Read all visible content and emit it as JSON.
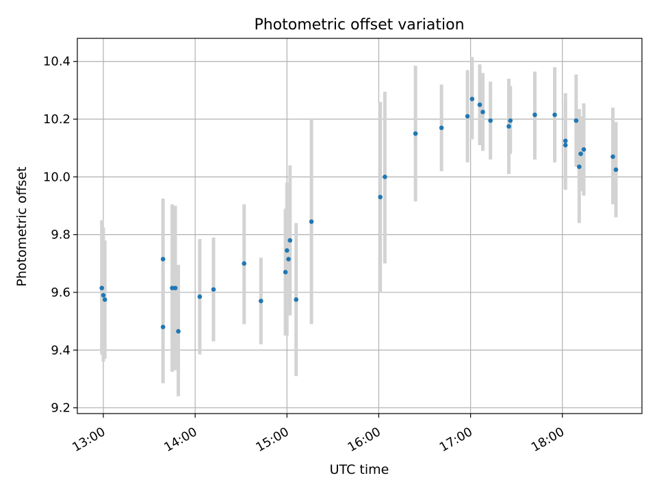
{
  "chart_data": {
    "type": "scatter",
    "title": "Photometric offset variation",
    "xlabel": "UTC time",
    "ylabel": "Photometric offset",
    "xlim": [
      "12:43",
      "18:52"
    ],
    "ylim": [
      9.18,
      10.48
    ],
    "xticks": [
      "13:00",
      "14:00",
      "15:00",
      "16:00",
      "17:00",
      "18:00"
    ],
    "yticks": [
      "9.2",
      "9.4",
      "9.6",
      "9.8",
      "10.0",
      "10.2",
      "10.4"
    ],
    "grid": true,
    "colors": {
      "point": "#1f77b4",
      "errorbar": "#d3d3d3",
      "grid": "#b0b0b0"
    },
    "points": [
      {
        "x": "12:59",
        "y": 9.615,
        "lo": 9.385,
        "hi": 9.85
      },
      {
        "x": "13:00",
        "y": 9.59,
        "lo": 9.36,
        "hi": 9.825
      },
      {
        "x": "13:01",
        "y": 9.575,
        "lo": 9.37,
        "hi": 9.78
      },
      {
        "x": "13:39",
        "y": 9.715,
        "lo": 9.505,
        "hi": 9.925
      },
      {
        "x": "13:39",
        "y": 9.48,
        "lo": 9.285,
        "hi": 9.685
      },
      {
        "x": "13:45",
        "y": 9.615,
        "lo": 9.325,
        "hi": 9.905
      },
      {
        "x": "13:47",
        "y": 9.615,
        "lo": 9.33,
        "hi": 9.9
      },
      {
        "x": "13:49",
        "y": 9.465,
        "lo": 9.24,
        "hi": 9.695
      },
      {
        "x": "14:03",
        "y": 9.585,
        "lo": 9.385,
        "hi": 9.785
      },
      {
        "x": "14:12",
        "y": 9.61,
        "lo": 9.43,
        "hi": 9.79
      },
      {
        "x": "14:32",
        "y": 9.7,
        "lo": 9.49,
        "hi": 9.905
      },
      {
        "x": "14:43",
        "y": 9.57,
        "lo": 9.42,
        "hi": 9.72
      },
      {
        "x": "14:59",
        "y": 9.67,
        "lo": 9.45,
        "hi": 9.89
      },
      {
        "x": "15:00",
        "y": 9.745,
        "lo": 9.45,
        "hi": 9.98
      },
      {
        "x": "15:01",
        "y": 9.715,
        "lo": 9.52,
        "hi": 9.905
      },
      {
        "x": "15:02",
        "y": 9.78,
        "lo": 9.52,
        "hi": 10.04
      },
      {
        "x": "15:06",
        "y": 9.575,
        "lo": 9.31,
        "hi": 9.84
      },
      {
        "x": "15:16",
        "y": 9.845,
        "lo": 9.49,
        "hi": 10.2
      },
      {
        "x": "16:01",
        "y": 9.93,
        "lo": 9.6,
        "hi": 10.26
      },
      {
        "x": "16:04",
        "y": 10.0,
        "lo": 9.7,
        "hi": 10.295
      },
      {
        "x": "16:24",
        "y": 10.15,
        "lo": 9.915,
        "hi": 10.385
      },
      {
        "x": "16:41",
        "y": 10.17,
        "lo": 10.02,
        "hi": 10.32
      },
      {
        "x": "16:58",
        "y": 10.21,
        "lo": 10.05,
        "hi": 10.37
      },
      {
        "x": "17:01",
        "y": 10.27,
        "lo": 10.13,
        "hi": 10.415
      },
      {
        "x": "17:06",
        "y": 10.25,
        "lo": 10.11,
        "hi": 10.39
      },
      {
        "x": "17:08",
        "y": 10.225,
        "lo": 10.09,
        "hi": 10.36
      },
      {
        "x": "17:13",
        "y": 10.195,
        "lo": 10.06,
        "hi": 10.33
      },
      {
        "x": "17:25",
        "y": 10.175,
        "lo": 10.01,
        "hi": 10.34
      },
      {
        "x": "17:26",
        "y": 10.195,
        "lo": 10.08,
        "hi": 10.315
      },
      {
        "x": "17:42",
        "y": 10.215,
        "lo": 10.06,
        "hi": 10.365
      },
      {
        "x": "17:55",
        "y": 10.215,
        "lo": 10.05,
        "hi": 10.38
      },
      {
        "x": "18:02",
        "y": 10.125,
        "lo": 9.955,
        "hi": 10.29
      },
      {
        "x": "18:02",
        "y": 10.11,
        "lo": 9.96,
        "hi": 10.26
      },
      {
        "x": "18:09",
        "y": 10.195,
        "lo": 10.035,
        "hi": 10.355
      },
      {
        "x": "18:11",
        "y": 10.035,
        "lo": 9.84,
        "hi": 10.235
      },
      {
        "x": "18:12",
        "y": 10.08,
        "lo": 9.95,
        "hi": 10.21
      },
      {
        "x": "18:14",
        "y": 10.095,
        "lo": 9.935,
        "hi": 10.255
      },
      {
        "x": "18:33",
        "y": 10.07,
        "lo": 9.905,
        "hi": 10.24
      },
      {
        "x": "18:35",
        "y": 10.025,
        "lo": 9.86,
        "hi": 10.19
      }
    ]
  }
}
